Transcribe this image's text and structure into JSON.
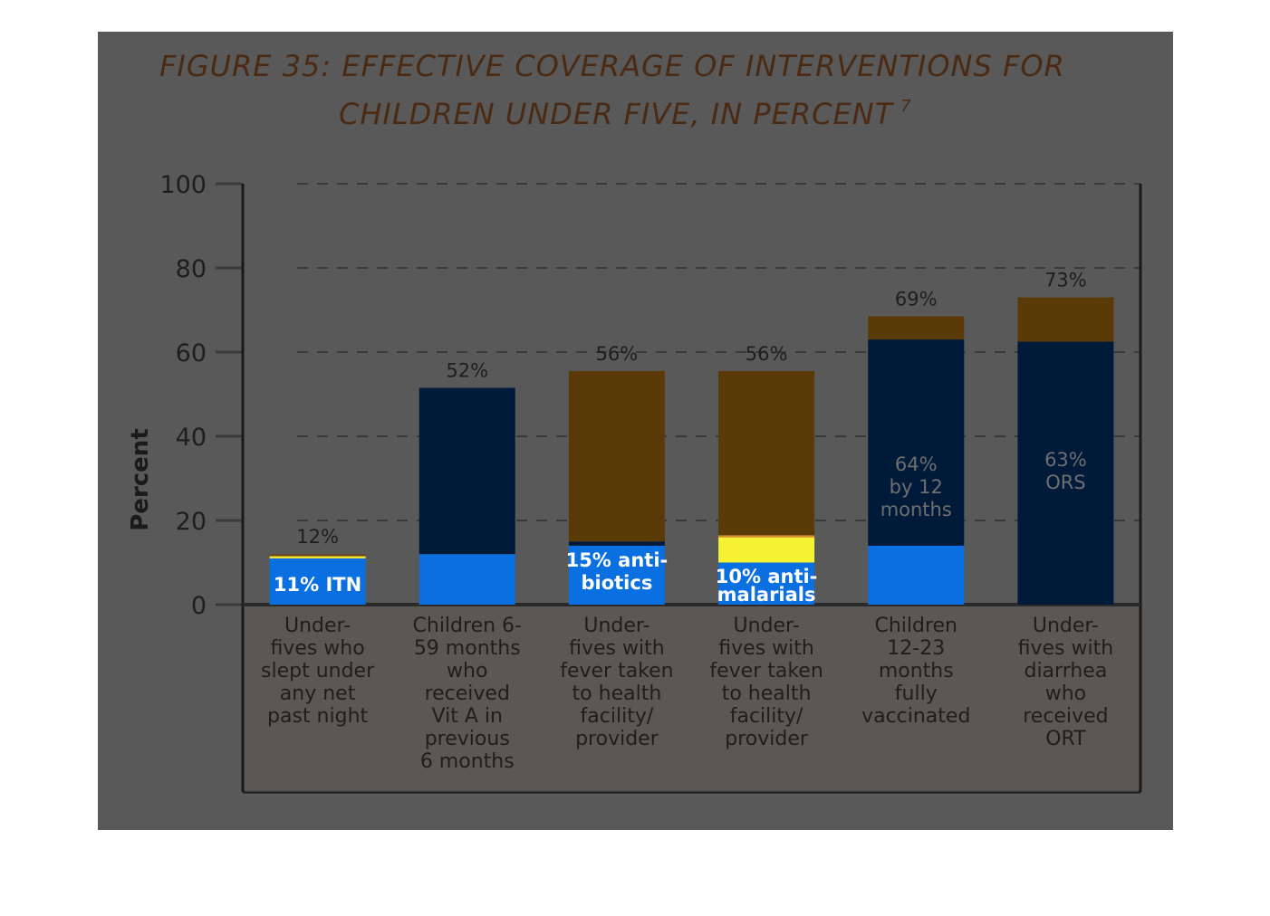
{
  "chart_data": {
    "type": "bar",
    "title_lines": [
      "FIGURE 35: EFFECTIVE COVERAGE OF INTERVENTIONS FOR",
      "CHILDREN UNDER FIVE, IN PERCENT"
    ],
    "title_footnote": "7",
    "ylabel": "Percent",
    "ylim": [
      0,
      100
    ],
    "yticks": [
      "0",
      "20",
      "40",
      "60",
      "80",
      "100"
    ],
    "grid": "horizontal dashed",
    "categories": [
      [
        "Under-",
        "fives who",
        "slept under",
        "any net",
        "past night"
      ],
      [
        "Children 6-",
        "59 months",
        "who",
        "received",
        "Vit A in",
        "previous",
        "6 months"
      ],
      [
        "Under-",
        "fives with",
        "fever taken",
        "to health",
        "facility/",
        "provider"
      ],
      [
        "Under-",
        "fives with",
        "fever taken",
        "to health",
        "facility/",
        "provider"
      ],
      [
        "Children",
        "12-23",
        "months",
        "fully",
        "vaccinated"
      ],
      [
        "Under-",
        "fives with",
        "diarrhea",
        "who",
        "received",
        "ORT"
      ]
    ],
    "totals": [
      "12%",
      "52%",
      "56%",
      "56%",
      "69%",
      "73%"
    ],
    "segments": [
      [
        {
          "value": 11,
          "color": "#0a6fe0"
        },
        {
          "value": 0.5,
          "color": "#f5f233"
        },
        {
          "value": 0.5,
          "color": "#6b4418"
        }
      ],
      [
        {
          "value": 12,
          "color": "#0a6fe0"
        },
        {
          "value": 39.5,
          "color": "#001a3a"
        }
      ],
      [
        {
          "value": 14,
          "color": "#0a6fe0"
        },
        {
          "value": 1,
          "color": "#001a3a"
        },
        {
          "value": 40.5,
          "color": "#5a3b08"
        }
      ],
      [
        {
          "value": 10,
          "color": "#0a6fe0"
        },
        {
          "value": 6,
          "color": "#f5f233"
        },
        {
          "value": 0.5,
          "color": "#d48a2a"
        },
        {
          "value": 39,
          "color": "#5a3b08"
        }
      ],
      [
        {
          "value": 14,
          "color": "#0a6fe0"
        },
        {
          "value": 49,
          "color": "#001a3a"
        },
        {
          "value": 5.5,
          "color": "#5a3b08"
        }
      ],
      [
        {
          "value": 62.5,
          "color": "#001a3a"
        },
        {
          "value": 10.5,
          "color": "#5a3b08"
        }
      ]
    ],
    "inner_labels": [
      {
        "lines": [
          "11% ITN"
        ],
        "style": "white"
      },
      {
        "lines": [],
        "style": "white"
      },
      {
        "lines": [
          "15% anti-",
          "biotics"
        ],
        "style": "white"
      },
      {
        "lines": [
          "10% anti-",
          "malarials"
        ],
        "style": "white"
      },
      {
        "lines": [
          "64%",
          "by 12",
          "months"
        ],
        "style": "dark"
      },
      {
        "lines": [
          "63%",
          "ORS"
        ],
        "style": "dark"
      }
    ]
  }
}
